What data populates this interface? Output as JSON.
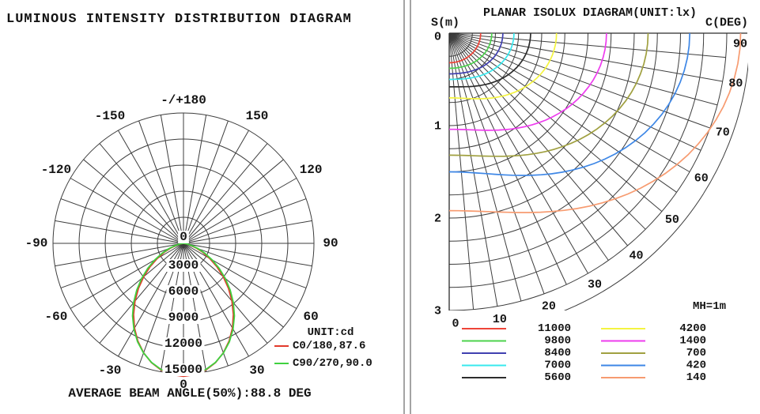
{
  "chart_data": [
    {
      "id": "luminous-intensity-distribution",
      "type": "polar-line",
      "title": "LUMINOUS INTENSITY DISTRIBUTION DIAGRAM",
      "unit": "cd",
      "legend_unit_label": "UNIT:cd",
      "caption": "AVERAGE BEAM ANGLE(50%):88.8 DEG",
      "average_beam_angle_50pct_deg": 88.8,
      "grid_ray_step_deg": 10,
      "ring_values_cd": [
        3000,
        6000,
        9000,
        12000,
        15000
      ],
      "ring_axis_labels": [
        "0",
        "3000",
        "6000",
        "9000",
        "12000",
        "15000"
      ],
      "angle_tick_labels": [
        {
          "angle_deg": 180,
          "text": "-/+180"
        },
        {
          "angle_deg": 150,
          "text": "150"
        },
        {
          "angle_deg": 120,
          "text": "120"
        },
        {
          "angle_deg": 90,
          "text": "90"
        },
        {
          "angle_deg": 60,
          "text": "60"
        },
        {
          "angle_deg": 30,
          "text": "30"
        },
        {
          "angle_deg": 0,
          "text": "0"
        },
        {
          "angle_deg": -30,
          "text": "-30"
        },
        {
          "angle_deg": -60,
          "text": "-60"
        },
        {
          "angle_deg": -90,
          "text": "-90"
        },
        {
          "angle_deg": -120,
          "text": "-120"
        },
        {
          "angle_deg": -150,
          "text": "-150"
        }
      ],
      "series": [
        {
          "name": "C0/180",
          "legend_label": "C0/180,87.6",
          "beam_angle_deg": 87.6,
          "color": "#e2392b",
          "angles_deg": [
            0,
            5,
            10,
            15,
            20,
            25,
            30,
            35,
            40,
            45,
            50,
            55,
            60,
            65,
            70,
            75,
            80,
            85,
            90
          ],
          "intensity_cd": [
            15300,
            15180,
            14810,
            14210,
            13400,
            12410,
            11260,
            10000,
            8670,
            7310,
            5970,
            4680,
            3500,
            2440,
            1560,
            860,
            370,
            90,
            0
          ]
        },
        {
          "name": "C90/270",
          "legend_label": "C90/270,90.0",
          "beam_angle_deg": 90.0,
          "color": "#3fd13f",
          "angles_deg": [
            0,
            5,
            10,
            15,
            20,
            25,
            30,
            35,
            40,
            45,
            50,
            55,
            60,
            65,
            70,
            75,
            80,
            85,
            90
          ],
          "intensity_cd": [
            15200,
            15080,
            14740,
            14180,
            13420,
            12490,
            11400,
            10200,
            8920,
            7600,
            6280,
            5000,
            3800,
            2720,
            1780,
            1020,
            460,
            120,
            0
          ]
        }
      ]
    },
    {
      "id": "planar-isolux",
      "type": "isolux-contour-fan",
      "title": "PLANAR ISOLUX DIAGRAM(UNIT:lx)",
      "unit": "lx",
      "s_axis_label": "S(m)",
      "c_axis_label": "C(DEG)",
      "mounting_height_label": "MH=1m",
      "s_ticks": [
        "0",
        "1",
        "2",
        "3"
      ],
      "c_ticks_deg": [
        0,
        10,
        20,
        30,
        40,
        50,
        60,
        70,
        80,
        90
      ],
      "grid": {
        "ray_step_deg": 5,
        "arc_step_m": 0.25,
        "s_max_m": 3.0,
        "arc_max_m": 3.25
      },
      "contours": [
        {
          "level_lx": 11000,
          "legend_label": "11000",
          "color": "#ee4438",
          "r_at_c0_m": 0.32,
          "r_at_c90_m": 0.34
        },
        {
          "level_lx": 9800,
          "legend_label": "9800",
          "color": "#4cd34c",
          "r_at_c0_m": 0.38,
          "r_at_c90_m": 0.46
        },
        {
          "level_lx": 8400,
          "legend_label": "8400",
          "color": "#4040b0",
          "r_at_c0_m": 0.44,
          "r_at_c90_m": 0.58
        },
        {
          "level_lx": 7000,
          "legend_label": "7000",
          "color": "#38e8ee",
          "r_at_c0_m": 0.5,
          "r_at_c90_m": 0.7
        },
        {
          "level_lx": 5600,
          "legend_label": "5600",
          "color": "#2d2d2d",
          "r_at_c0_m": 0.58,
          "r_at_c90_m": 0.88
        },
        {
          "level_lx": 4200,
          "legend_label": "4200",
          "color": "#f4f441",
          "r_at_c0_m": 0.7,
          "r_at_c90_m": 1.16
        },
        {
          "level_lx": 1400,
          "legend_label": "1400",
          "color": "#ee3cee",
          "r_at_c0_m": 1.04,
          "r_at_c90_m": 1.7
        },
        {
          "level_lx": 700,
          "legend_label": "700",
          "color": "#a0a040",
          "r_at_c0_m": 1.32,
          "r_at_c90_m": 2.15
        },
        {
          "level_lx": 420,
          "legend_label": "420",
          "color": "#3e87e6",
          "r_at_c0_m": 1.5,
          "r_at_c90_m": 2.6
        },
        {
          "level_lx": 140,
          "legend_label": "140",
          "color": "#f79b70",
          "r_at_c0_m": 1.92,
          "r_at_c90_m": 3.15
        }
      ],
      "legend_split": [
        5,
        5
      ]
    }
  ]
}
